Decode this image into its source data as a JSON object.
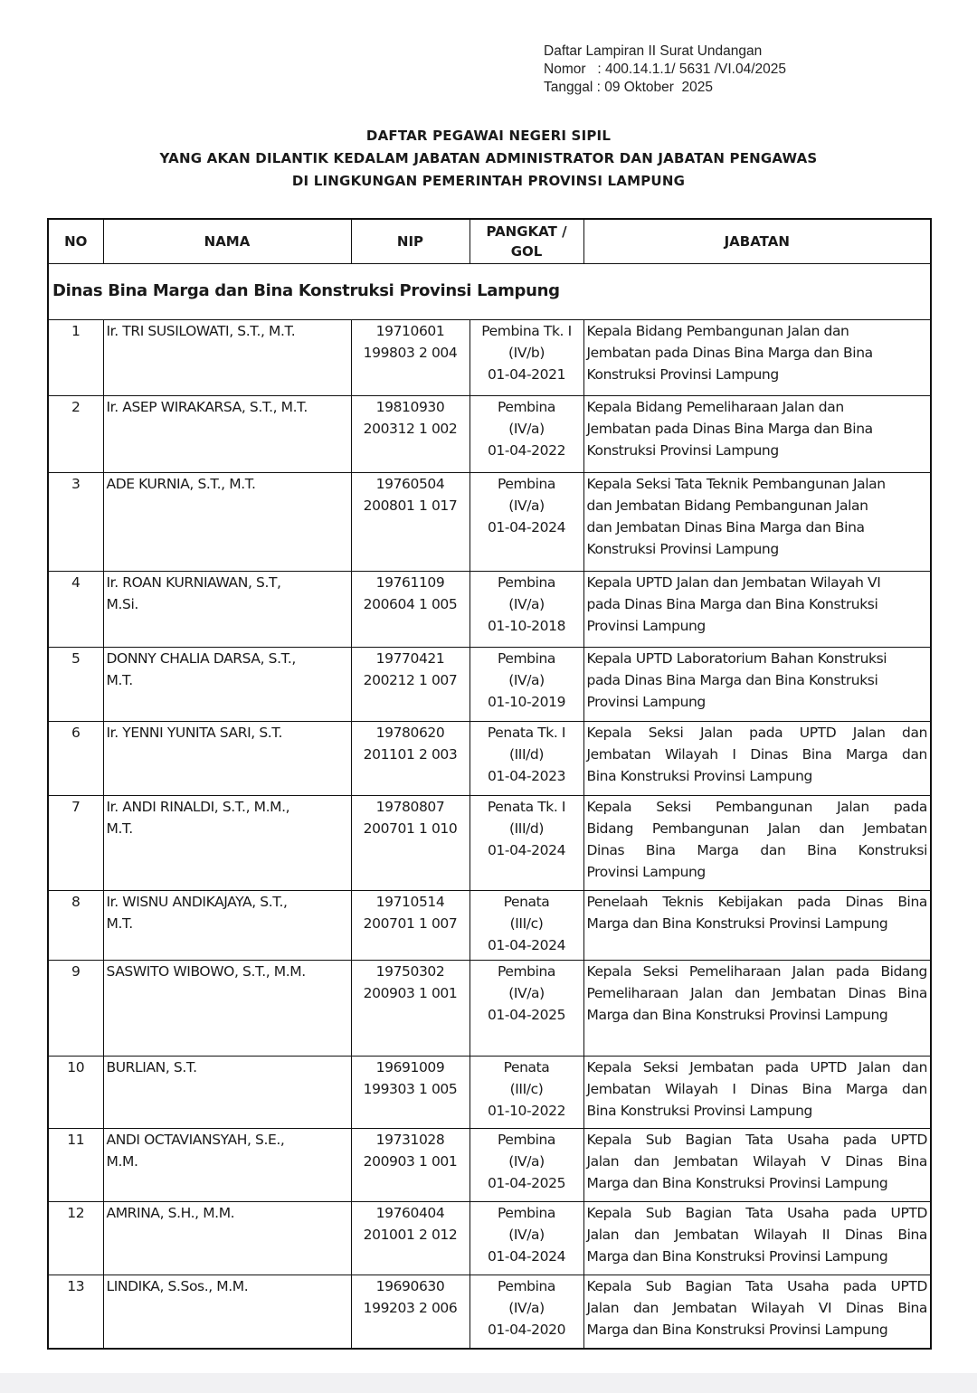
{
  "reference": {
    "line1": "Daftar Lampiran II Surat Undangan",
    "line2": "Nomor   : 400.14.1.1/ 5631 /VI.04/2025",
    "line3": "Tanggal : 09 Oktober  2025"
  },
  "title": {
    "line1": "DAFTAR PEGAWAI NEGERI SIPIL",
    "line2": "YANG AKAN DILANTIK KEDALAM JABATAN ADMINISTRATOR DAN JABATAN PENGAWAS",
    "line3": "DI LINGKUNGAN PEMERINTAH PROVINSI LAMPUNG"
  },
  "table": {
    "headers": {
      "no": "NO",
      "nama": "NAMA",
      "nip": "NIP",
      "pangkat": "PANGKAT / GOL",
      "jabatan": "JABATAN"
    },
    "section": "Dinas Bina Marga dan Bina Konstruksi Provinsi Lampung",
    "rows": [
      {
        "no": "1",
        "nama": [
          "Ir. TRI SUSILOWATI, S.T., M.T."
        ],
        "nip": [
          "19710601",
          "199803 2 004"
        ],
        "pangkat": [
          "Pembina Tk. I",
          "(IV/b)",
          "01-04-2021"
        ],
        "jabatan": [
          "Kepala Bidang Pembangunan Jalan dan",
          "Jembatan pada Dinas Bina Marga dan Bina",
          "Konstruksi Provinsi Lampung"
        ]
      },
      {
        "no": "2",
        "nama": [
          "Ir. ASEP WIRAKARSA, S.T., M.T."
        ],
        "nip": [
          "19810930",
          "200312 1 002"
        ],
        "pangkat": [
          "Pembina",
          "(IV/a)",
          "01-04-2022"
        ],
        "jabatan": [
          "Kepala Bidang Pemeliharaan Jalan dan",
          "Jembatan pada Dinas Bina Marga dan Bina",
          "Konstruksi Provinsi Lampung"
        ]
      },
      {
        "no": "3",
        "nama": [
          "ADE KURNIA, S.T., M.T."
        ],
        "nip": [
          "19760504",
          "200801 1 017"
        ],
        "pangkat": [
          "Pembina",
          "(IV/a)",
          "01-04-2024"
        ],
        "jabatan": [
          "Kepala Seksi Tata Teknik Pembangunan Jalan",
          "dan Jembatan Bidang Pembangunan Jalan",
          "dan Jembatan Dinas Bina Marga dan Bina",
          "Konstruksi Provinsi Lampung"
        ]
      },
      {
        "no": "4",
        "nama": [
          "Ir. ROAN KURNIAWAN, S.T,",
          "M.Si."
        ],
        "nip": [
          "19761109",
          "200604 1 005"
        ],
        "pangkat": [
          "Pembina",
          "(IV/a)",
          "01-10-2018"
        ],
        "jabatan": [
          "Kepala UPTD Jalan dan Jembatan Wilayah VI",
          "pada Dinas Bina Marga dan Bina Konstruksi",
          "Provinsi Lampung"
        ]
      },
      {
        "no": "5",
        "nama": [
          "DONNY CHALIA DARSA, S.T.,",
          "M.T."
        ],
        "nip": [
          "19770421",
          "200212 1 007"
        ],
        "pangkat": [
          "Pembina",
          "(IV/a)",
          "01-10-2019"
        ],
        "jabatan": [
          "Kepala UPTD Laboratorium Bahan Konstruksi",
          "pada Dinas Bina Marga dan Bina Konstruksi",
          "Provinsi Lampung"
        ]
      },
      {
        "no": "6",
        "nama": [
          "Ir. YENNI YUNITA SARI, S.T."
        ],
        "nip": [
          "19780620",
          "201101 2 003"
        ],
        "pangkat": [
          "Penata Tk. I",
          "(III/d)",
          "01-04-2023"
        ],
        "jabatan": [
          "Kepala Seksi Jalan pada UPTD Jalan dan",
          "Jembatan Wilayah I Dinas Bina Marga dan",
          "Bina Konstruksi Provinsi Lampung"
        ]
      },
      {
        "no": "7",
        "nama": [
          "Ir. ANDI RINALDI, S.T., M.M.,",
          "M.T."
        ],
        "nip": [
          "19780807",
          "200701 1 010"
        ],
        "pangkat": [
          "Penata Tk. I",
          "(III/d)",
          "01-04-2024"
        ],
        "jabatan": [
          "Kepala Seksi Pembangunan Jalan pada",
          "Bidang Pembangunan Jalan dan Jembatan",
          "Dinas Bina Marga dan Bina Konstruksi",
          "Provinsi Lampung"
        ]
      },
      {
        "no": "8",
        "nama": [
          "Ir. WISNU ANDIKAJAYA, S.T.,",
          "M.T."
        ],
        "nip": [
          "19710514",
          "200701 1 007"
        ],
        "pangkat": [
          "Penata",
          "(III/c)",
          "01-04-2024"
        ],
        "jabatan": [
          "Penelaah Teknis Kebijakan pada Dinas Bina",
          "Marga dan Bina Konstruksi Provinsi Lampung"
        ]
      },
      {
        "no": "9",
        "nama": [
          "SASWITO WIBOWO, S.T., M.M."
        ],
        "nip": [
          "19750302",
          "200903 1 001"
        ],
        "pangkat": [
          "Pembina",
          "(IV/a)",
          "01-04-2025"
        ],
        "jabatan": [
          "Kepala Seksi Pemeliharaan Jalan pada Bidang",
          "Pemeliharaan Jalan dan Jembatan Dinas Bina",
          "Marga dan Bina Konstruksi Provinsi Lampung"
        ]
      },
      {
        "no": "10",
        "nama": [
          "BURLIAN, S.T."
        ],
        "nip": [
          "19691009",
          "199303 1 005"
        ],
        "pangkat": [
          "Penata",
          "(III/c)",
          "01-10-2022"
        ],
        "jabatan": [
          "Kepala Seksi Jembatan pada UPTD Jalan dan",
          "Jembatan Wilayah I Dinas Bina Marga dan",
          "Bina Konstruksi Provinsi Lampung"
        ]
      },
      {
        "no": "11",
        "nama": [
          "ANDI OCTAVIANSYAH, S.E.,",
          "M.M."
        ],
        "nip": [
          "19731028",
          "200903 1 001"
        ],
        "pangkat": [
          "Pembina",
          "(IV/a)",
          "01-04-2025"
        ],
        "jabatan": [
          "Kepala Sub Bagian Tata Usaha pada UPTD",
          "Jalan dan Jembatan Wilayah V Dinas Bina",
          "Marga dan Bina Konstruksi Provinsi Lampung"
        ]
      },
      {
        "no": "12",
        "nama": [
          "AMRINA, S.H., M.M."
        ],
        "nip": [
          "19760404",
          "201001 2 012"
        ],
        "pangkat": [
          "Pembina",
          "(IV/a)",
          "01-04-2024"
        ],
        "jabatan": [
          "Kepala Sub Bagian Tata Usaha pada UPTD",
          "Jalan dan Jembatan Wilayah II Dinas Bina",
          "Marga dan Bina Konstruksi Provinsi Lampung"
        ]
      },
      {
        "no": "13",
        "nama": [
          "LINDIKA, S.Sos., M.M."
        ],
        "nip": [
          "19690630",
          "199203 2 006"
        ],
        "pangkat": [
          "Pembina",
          "(IV/a)",
          "01-04-2020"
        ],
        "jabatan": [
          "Kepala Sub Bagian Tata Usaha pada UPTD",
          "Jalan dan Jembatan Wilayah VI Dinas Bina",
          "Marga dan Bina Konstruksi Provinsi Lampung"
        ]
      }
    ]
  }
}
